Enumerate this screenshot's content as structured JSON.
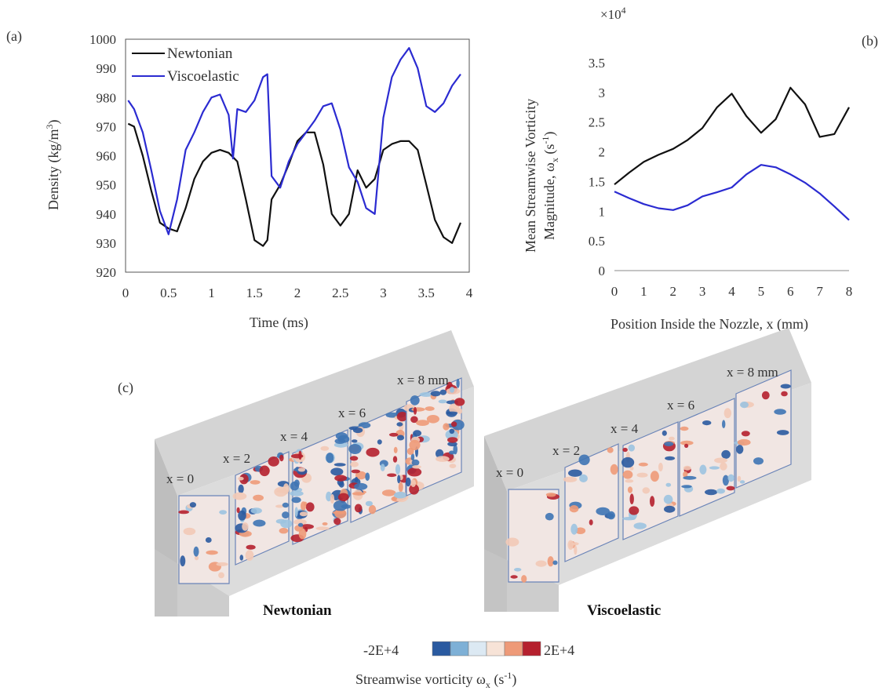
{
  "panels": {
    "a": "(a)",
    "b": "(b)",
    "c": "(c)"
  },
  "chart_data": [
    {
      "type": "line",
      "panel": "(a)",
      "xlabel": "Time (ms)",
      "ylabel_main": "Density (kg/m",
      "ylabel_sup": "3",
      "ylabel_tail": ")",
      "xlim": [
        0,
        4
      ],
      "ylim": [
        920,
        1000
      ],
      "xticks": [
        "0",
        "0.5",
        "1",
        "1.5",
        "2",
        "2.5",
        "3",
        "3.5",
        "4"
      ],
      "yticks": [
        "920",
        "930",
        "940",
        "950",
        "960",
        "970",
        "980",
        "990",
        "1000"
      ],
      "grid": false,
      "legend_position": "top-left",
      "series": [
        {
          "name": "Newtonian",
          "color": "#111111",
          "x": [
            0.03,
            0.1,
            0.2,
            0.3,
            0.4,
            0.5,
            0.6,
            0.7,
            0.8,
            0.9,
            1.0,
            1.1,
            1.2,
            1.3,
            1.4,
            1.5,
            1.6,
            1.65,
            1.7,
            1.8,
            1.9,
            2.0,
            2.1,
            2.2,
            2.3,
            2.4,
            2.5,
            2.6,
            2.7,
            2.8,
            2.9,
            3.0,
            3.1,
            3.2,
            3.3,
            3.4,
            3.5,
            3.6,
            3.7,
            3.8,
            3.9
          ],
          "values": [
            971,
            970,
            960,
            948,
            937,
            935,
            934,
            942,
            952,
            958,
            961,
            962,
            961,
            958,
            945,
            931,
            929,
            931,
            945,
            950,
            957,
            965,
            968,
            968,
            957,
            940,
            936,
            940,
            955,
            949,
            952,
            962,
            964,
            965,
            965,
            962,
            950,
            938,
            932,
            930,
            937
          ]
        },
        {
          "name": "Viscoelastic",
          "color": "#2b2bd1",
          "x": [
            0.03,
            0.1,
            0.2,
            0.3,
            0.4,
            0.5,
            0.6,
            0.7,
            0.8,
            0.9,
            1.0,
            1.1,
            1.2,
            1.25,
            1.3,
            1.4,
            1.5,
            1.6,
            1.65,
            1.7,
            1.8,
            1.9,
            2.0,
            2.1,
            2.2,
            2.3,
            2.4,
            2.5,
            2.6,
            2.7,
            2.8,
            2.9,
            3.0,
            3.1,
            3.2,
            3.3,
            3.4,
            3.5,
            3.6,
            3.7,
            3.8,
            3.9
          ],
          "values": [
            979,
            976,
            968,
            955,
            941,
            933,
            945,
            962,
            968,
            975,
            980,
            981,
            974,
            959,
            976,
            975,
            979,
            987,
            988,
            953,
            949,
            958,
            964,
            968,
            972,
            977,
            978,
            969,
            956,
            951,
            942,
            940,
            973,
            987,
            993,
            997,
            990,
            977,
            975,
            978,
            984,
            988
          ]
        }
      ]
    },
    {
      "type": "line",
      "panel": "(b)",
      "xlabel": "Position Inside the Nozzle, x (mm)",
      "ylabel_line1": "Mean Streamwise Vorticity",
      "ylabel_line2_main": "Magnitude, ω",
      "ylabel_line2_sub": "x",
      "ylabel_line2_mid": " (s",
      "ylabel_line2_sup": "-1",
      "ylabel_line2_tail": ")",
      "multiplier_main": "×10",
      "multiplier_sup": "4",
      "xlim": [
        0,
        8
      ],
      "ylim": [
        0,
        3.5
      ],
      "xticks": [
        "0",
        "1",
        "2",
        "3",
        "4",
        "5",
        "6",
        "7",
        "8"
      ],
      "yticks": [
        "0",
        "0.5",
        "1",
        "1.5",
        "2",
        "2.5",
        "3",
        "3.5"
      ],
      "grid": false,
      "series": [
        {
          "color": "#111111",
          "x": [
            0,
            0.5,
            1,
            1.5,
            2,
            2.5,
            3,
            3.5,
            4,
            4.5,
            5,
            5.5,
            6,
            6.5,
            7,
            7.5,
            8
          ],
          "values": [
            1.45,
            1.65,
            1.83,
            1.95,
            2.05,
            2.2,
            2.4,
            2.75,
            2.98,
            2.6,
            2.32,
            2.55,
            3.08,
            2.8,
            2.25,
            2.3,
            2.75
          ]
        },
        {
          "color": "#2b2bd1",
          "x": [
            0,
            0.5,
            1,
            1.5,
            2,
            2.5,
            3,
            3.5,
            4,
            4.5,
            5,
            5.5,
            6,
            6.5,
            7,
            7.5,
            8
          ],
          "values": [
            1.33,
            1.22,
            1.12,
            1.05,
            1.02,
            1.1,
            1.25,
            1.32,
            1.4,
            1.62,
            1.78,
            1.74,
            1.62,
            1.48,
            1.3,
            1.08,
            0.85
          ]
        }
      ]
    }
  ],
  "panel_c": {
    "slice_labels_newtonian": [
      "x = 0",
      "x = 2",
      "x = 4",
      "x = 6",
      "x = 8 mm"
    ],
    "slice_labels_viscoelastic": [
      "x = 0",
      "x = 2",
      "x = 4",
      "x = 6",
      "x = 8 mm"
    ],
    "group_newtonian": "Newtonian",
    "group_viscoelastic": "Viscoelastic",
    "colorbar_min": "-2E+4",
    "colorbar_max": "2E+4",
    "colorbar_colors": [
      "#2a5aa0",
      "#7eb0d6",
      "#dce9f3",
      "#f7e3d7",
      "#ee9a78",
      "#b5202e"
    ],
    "colorbar_title_main": "Streamwise vorticity ω",
    "colorbar_title_sub": "x",
    "colorbar_title_mid": " (s",
    "colorbar_title_sup": "-1",
    "colorbar_title_tail": ")"
  }
}
